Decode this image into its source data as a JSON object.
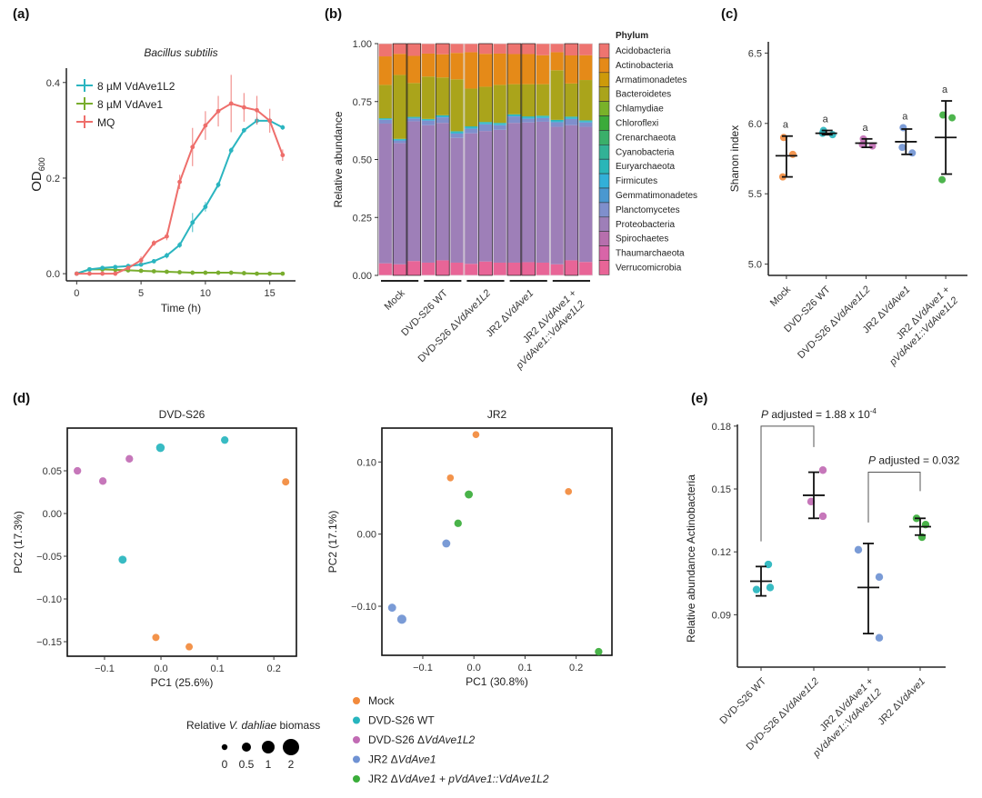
{
  "panels": {
    "a": "(a)",
    "b": "(b)",
    "c": "(c)",
    "d": "(d)",
    "e": "(e)"
  },
  "chart_data": [
    {
      "id": "a",
      "type": "line",
      "title": "Bacillus subtilis",
      "xlabel": "Time (h)",
      "ylabel": "OD",
      "ylabel_sub": "600",
      "xlim": [
        -0.8,
        17
      ],
      "ylim": [
        -0.015,
        0.43
      ],
      "xticks": [
        0,
        5,
        10,
        15
      ],
      "yticks": [
        0.0,
        0.2,
        0.4
      ],
      "ytick_labels": [
        "0.0",
        "0.2",
        "0.4"
      ],
      "legend_position": "top-left",
      "x": [
        0,
        1,
        2,
        3,
        4,
        5,
        6,
        7,
        8,
        9,
        10,
        11,
        12,
        13,
        14,
        15,
        16
      ],
      "series": [
        {
          "name": "8 µM VdAve1L2",
          "color": "#2bb5c0",
          "values": [
            0.0,
            0.009,
            0.012,
            0.014,
            0.016,
            0.019,
            0.026,
            0.038,
            0.06,
            0.107,
            0.14,
            0.186,
            0.258,
            0.3,
            0.32,
            0.32,
            0.306
          ],
          "errors": [
            0.002,
            0.002,
            0.002,
            0.002,
            0.003,
            0.003,
            0.004,
            0.006,
            0.006,
            0.02,
            0.01,
            0.006,
            0.006,
            0.005,
            0.008,
            0.006,
            0.005
          ]
        },
        {
          "name": "8 µM VdAve1",
          "color": "#79ad2e",
          "values": [
            0.0,
            0.009,
            0.009,
            0.008,
            0.007,
            0.006,
            0.005,
            0.004,
            0.003,
            0.002,
            0.002,
            0.002,
            0.002,
            0.001,
            0.0,
            0.0,
            0.0
          ],
          "errors": [
            0.002,
            0.002,
            0.002,
            0.002,
            0.002,
            0.002,
            0.002,
            0.002,
            0.002,
            0.002,
            0.002,
            0.002,
            0.002,
            0.002,
            0.002,
            0.002,
            0.002
          ]
        },
        {
          "name": "MQ",
          "color": "#ee6e6b",
          "values": [
            0.0,
            0.0,
            0.0,
            0.0,
            0.012,
            0.028,
            0.064,
            0.078,
            0.192,
            0.265,
            0.31,
            0.34,
            0.356,
            0.348,
            0.342,
            0.32,
            0.248
          ],
          "errors": [
            0.002,
            0.002,
            0.002,
            0.002,
            0.004,
            0.008,
            0.006,
            0.008,
            0.015,
            0.04,
            0.03,
            0.032,
            0.06,
            0.03,
            0.03,
            0.025,
            0.012
          ]
        }
      ]
    },
    {
      "id": "b",
      "type": "bar",
      "stacked": true,
      "xlabel": "",
      "ylabel": "Relative abundance",
      "ylim": [
        0,
        1
      ],
      "yticks": [
        0.0,
        0.25,
        0.5,
        0.75,
        1.0
      ],
      "ytick_labels": [
        "0.00",
        "0.25",
        "0.50",
        "0.75",
        "1.00"
      ],
      "group_labels": [
        "Mock",
        "DVD-S26 WT",
        "DVD-S26 ΔVdAve1L2",
        "JR2 ΔVdAve1",
        "JR2 ΔVdAve1 +|pVdAve1::VdAve1L2"
      ],
      "bars_per_group": 3,
      "legend_title": "Phylum",
      "legend_position": "right",
      "phyla": [
        "Acidobacteria",
        "Actinobacteria",
        "Armatimonadetes",
        "Bacteroidetes",
        "Chlamydiae",
        "Chloroflexi",
        "Crenarchaeota",
        "Cyanobacteria",
        "Euryarchaeota",
        "Firmicutes",
        "Gemmatimonadetes",
        "Planctomycetes",
        "Proteobacteria",
        "Spirochaetes",
        "Thaumarchaeota",
        "Verrucomicrobia"
      ],
      "colors": [
        "#ee7470",
        "#e58a18",
        "#cd9a0a",
        "#aaa41b",
        "#79b229",
        "#3bab3a",
        "#3aaf6a",
        "#32b296",
        "#2ab6b8",
        "#32b0d8",
        "#4a98d0",
        "#7f8fcc",
        "#9e7fb8",
        "#b66fad",
        "#d865a8",
        "#e86597"
      ],
      "samples": [
        {
          "Verrucomicrobia": 0.052,
          "Proteobacteria": 0.603,
          "Planctomycetes": 0.016,
          "Firmicutes": 0.003,
          "Euryarchaeota": 0.004,
          "Bacteroidetes": 0.144,
          "Actinobacteria": 0.123,
          "Acidobacteria": 0.055
        },
        {
          "Verrucomicrobia": 0.048,
          "Proteobacteria": 0.523,
          "Planctomycetes": 0.011,
          "Firmicutes": 0.003,
          "Euryarchaeota": 0.004,
          "Bacteroidetes": 0.276,
          "Actinobacteria": 0.091,
          "Acidobacteria": 0.044
        },
        {
          "Verrucomicrobia": 0.062,
          "Proteobacteria": 0.603,
          "Planctomycetes": 0.012,
          "Firmicutes": 0.003,
          "Euryarchaeota": 0.004,
          "Bacteroidetes": 0.146,
          "Actinobacteria": 0.117,
          "Acidobacteria": 0.053
        },
        {
          "Verrucomicrobia": 0.055,
          "Proteobacteria": 0.593,
          "Planctomycetes": 0.02,
          "Firmicutes": 0.003,
          "Euryarchaeota": 0.004,
          "Bacteroidetes": 0.183,
          "Actinobacteria": 0.099,
          "Acidobacteria": 0.043
        },
        {
          "Verrucomicrobia": 0.065,
          "Proteobacteria": 0.593,
          "Planctomycetes": 0.024,
          "Firmicutes": 0.004,
          "Euryarchaeota": 0.005,
          "Bacteroidetes": 0.163,
          "Actinobacteria": 0.1,
          "Acidobacteria": 0.046
        },
        {
          "Verrucomicrobia": 0.055,
          "Proteobacteria": 0.538,
          "Planctomycetes": 0.019,
          "Firmicutes": 0.004,
          "Euryarchaeota": 0.006,
          "Bacteroidetes": 0.224,
          "Actinobacteria": 0.114,
          "Acidobacteria": 0.04
        },
        {
          "Verrucomicrobia": 0.05,
          "Proteobacteria": 0.563,
          "Planctomycetes": 0.02,
          "Firmicutes": 0.004,
          "Euryarchaeota": 0.006,
          "Bacteroidetes": 0.163,
          "Actinobacteria": 0.157,
          "Acidobacteria": 0.037
        },
        {
          "Verrucomicrobia": 0.06,
          "Proteobacteria": 0.563,
          "Planctomycetes": 0.029,
          "Firmicutes": 0.004,
          "Euryarchaeota": 0.006,
          "Bacteroidetes": 0.152,
          "Actinobacteria": 0.142,
          "Acidobacteria": 0.044
        },
        {
          "Verrucomicrobia": 0.055,
          "Proteobacteria": 0.573,
          "Planctomycetes": 0.02,
          "Firmicutes": 0.004,
          "Euryarchaeota": 0.006,
          "Bacteroidetes": 0.164,
          "Actinobacteria": 0.135,
          "Acidobacteria": 0.043
        },
        {
          "Verrucomicrobia": 0.055,
          "Proteobacteria": 0.603,
          "Planctomycetes": 0.028,
          "Firmicutes": 0.004,
          "Euryarchaeota": 0.005,
          "Bacteroidetes": 0.13,
          "Actinobacteria": 0.13,
          "Acidobacteria": 0.045
        },
        {
          "Verrucomicrobia": 0.057,
          "Proteobacteria": 0.603,
          "Planctomycetes": 0.016,
          "Firmicutes": 0.004,
          "Euryarchaeota": 0.006,
          "Bacteroidetes": 0.139,
          "Actinobacteria": 0.13,
          "Acidobacteria": 0.045
        },
        {
          "Verrucomicrobia": 0.055,
          "Proteobacteria": 0.608,
          "Planctomycetes": 0.016,
          "Firmicutes": 0.004,
          "Euryarchaeota": 0.006,
          "Bacteroidetes": 0.136,
          "Actinobacteria": 0.125,
          "Acidobacteria": 0.05
        },
        {
          "Verrucomicrobia": 0.048,
          "Proteobacteria": 0.593,
          "Planctomycetes": 0.02,
          "Firmicutes": 0.004,
          "Euryarchaeota": 0.006,
          "Bacteroidetes": 0.214,
          "Actinobacteria": 0.078,
          "Acidobacteria": 0.037
        },
        {
          "Verrucomicrobia": 0.065,
          "Proteobacteria": 0.583,
          "Planctomycetes": 0.027,
          "Firmicutes": 0.004,
          "Euryarchaeota": 0.006,
          "Bacteroidetes": 0.143,
          "Actinobacteria": 0.121,
          "Acidobacteria": 0.051
        },
        {
          "Verrucomicrobia": 0.058,
          "Proteobacteria": 0.583,
          "Planctomycetes": 0.019,
          "Firmicutes": 0.004,
          "Euryarchaeota": 0.005,
          "Bacteroidetes": 0.174,
          "Actinobacteria": 0.107,
          "Acidobacteria": 0.05
        }
      ]
    },
    {
      "id": "c",
      "type": "scatter",
      "xlabel": "",
      "ylabel": "Shanon index",
      "ylim": [
        4.92,
        6.58
      ],
      "yticks": [
        5.0,
        5.5,
        6.0,
        6.5
      ],
      "ytick_labels": [
        "5.0",
        "5.5",
        "6.0",
        "6.5"
      ],
      "categories": [
        "Mock",
        "DVD-S26 WT",
        "DVD-S26 ΔVdAve1L2",
        "JR2 ΔVdAve1",
        "JR2 ΔVdAve1 +|pVdAve1::VdAve1L2"
      ],
      "colors": [
        "#f28a3c",
        "#27b5be",
        "#c16bb4",
        "#6f92d3",
        "#3aad3a"
      ],
      "points": [
        [
          5.9,
          5.78,
          5.62
        ],
        [
          5.95,
          5.92,
          5.93
        ],
        [
          5.89,
          5.84,
          5.85
        ],
        [
          5.97,
          5.79,
          5.83
        ],
        [
          6.06,
          6.04,
          5.6
        ]
      ],
      "means": [
        5.77,
        5.93,
        5.86,
        5.87,
        5.9
      ],
      "err_low": [
        5.62,
        5.92,
        5.83,
        5.78,
        5.64
      ],
      "err_high": [
        5.91,
        5.95,
        5.89,
        5.96,
        6.16
      ],
      "significance": [
        "a",
        "a",
        "a",
        "a",
        "a"
      ]
    },
    {
      "id": "d1",
      "type": "scatter",
      "title": "DVD-S26",
      "xlabel": "PC1   (25.6%)",
      "ylabel": "PC2   (17.3%)",
      "xlim": [
        -0.166,
        0.24
      ],
      "ylim": [
        -0.167,
        0.1
      ],
      "xticks": [
        -0.1,
        0.0,
        0.1,
        0.2
      ],
      "xtick_labels": [
        "−0.1",
        "0.0",
        "0.1",
        "0.2"
      ],
      "yticks": [
        -0.15,
        -0.1,
        -0.05,
        0.0,
        0.05
      ],
      "ytick_labels": [
        "−0.15",
        "−0.10",
        "−0.05",
        "0.00",
        "0.05"
      ],
      "points": [
        {
          "group": "DVD-S26 ΔVdAve1L2",
          "x": -0.148,
          "y": 0.05,
          "size": 0.6
        },
        {
          "group": "DVD-S26 ΔVdAve1L2",
          "x": -0.103,
          "y": 0.038,
          "size": 0.6
        },
        {
          "group": "DVD-S26 ΔVdAve1L2",
          "x": -0.056,
          "y": 0.064,
          "size": 0.6
        },
        {
          "group": "DVD-S26 WT",
          "x": -0.001,
          "y": 0.077,
          "size": 1.0
        },
        {
          "group": "DVD-S26 WT",
          "x": 0.113,
          "y": 0.086,
          "size": 0.6
        },
        {
          "group": "DVD-S26 WT",
          "x": -0.068,
          "y": -0.054,
          "size": 0.8
        },
        {
          "group": "Mock",
          "x": 0.221,
          "y": 0.037,
          "size": 0.5
        },
        {
          "group": "Mock",
          "x": -0.009,
          "y": -0.145,
          "size": 0.5
        },
        {
          "group": "Mock",
          "x": 0.05,
          "y": -0.156,
          "size": 0.5
        }
      ]
    },
    {
      "id": "d2",
      "type": "scatter",
      "title": "JR2",
      "xlabel": "PC1   (30.8%)",
      "ylabel": "PC2   (17.1%)",
      "xlim": [
        -0.18,
        0.27
      ],
      "ylim": [
        -0.168,
        0.147
      ],
      "xticks": [
        -0.1,
        0.0,
        0.1,
        0.2
      ],
      "xtick_labels": [
        "−0.1",
        "0.0",
        "0.1",
        "0.2"
      ],
      "yticks": [
        -0.1,
        0.0,
        0.1
      ],
      "ytick_labels": [
        "−0.10",
        "0.00",
        "0.10"
      ],
      "points": [
        {
          "group": "Mock",
          "x": 0.004,
          "y": 0.138,
          "size": 0.4
        },
        {
          "group": "Mock",
          "x": -0.046,
          "y": 0.078,
          "size": 0.4
        },
        {
          "group": "Mock",
          "x": 0.185,
          "y": 0.059,
          "size": 0.4
        },
        {
          "group": "JR2 ΔVdAve1 + pVdAve1::VdAve1L2",
          "x": -0.01,
          "y": 0.055,
          "size": 0.8
        },
        {
          "group": "JR2 ΔVdAve1 + pVdAve1::VdAve1L2",
          "x": -0.031,
          "y": 0.015,
          "size": 0.6
        },
        {
          "group": "JR2 ΔVdAve1 + pVdAve1::VdAve1L2",
          "x": 0.244,
          "y": -0.163,
          "size": 0.6
        },
        {
          "group": "JR2 ΔVdAve1",
          "x": -0.054,
          "y": -0.013,
          "size": 0.8
        },
        {
          "group": "JR2 ΔVdAve1",
          "x": -0.16,
          "y": -0.102,
          "size": 0.8
        },
        {
          "group": "JR2 ΔVdAve1",
          "x": -0.141,
          "y": -0.118,
          "size": 1.3
        }
      ]
    },
    {
      "id": "e",
      "type": "scatter",
      "xlabel": "",
      "ylabel": "Relative abundance Actinobacteria",
      "ylim": [
        0.065,
        0.186
      ],
      "yticks": [
        0.09,
        0.12,
        0.15,
        0.18
      ],
      "ytick_labels": [
        "0.09",
        "0.12",
        "0.15",
        "0.18"
      ],
      "categories": [
        "DVD-S26 WT",
        "DVD-S26 ΔVdAve1L2",
        "JR2 ΔVdAve1 +|pVdAve1::VdAve1L2",
        "JR2 ΔVdAve1"
      ],
      "colors": [
        "#27b5be",
        "#c16bb4",
        "#6f92d3",
        "#3aad3a"
      ],
      "points": [
        [
          0.102,
          0.103,
          0.114
        ],
        [
          0.144,
          0.137,
          0.159
        ],
        [
          0.121,
          0.108,
          0.079
        ],
        [
          0.136,
          0.133,
          0.127
        ]
      ],
      "means": [
        0.106,
        0.147,
        0.103,
        0.132
      ],
      "err_low": [
        0.099,
        0.136,
        0.081,
        0.128
      ],
      "err_high": [
        0.113,
        0.158,
        0.124,
        0.136
      ],
      "annotations": [
        {
          "label_p": "P",
          "label_rest": " adjusted = 1.88 x 10",
          "sup": "-4",
          "from": 0,
          "to": 1,
          "y": 0.18,
          "left_drop": 0.125,
          "right_drop": 0.17
        },
        {
          "label_p": "P",
          "label_rest": " adjusted = 0.032",
          "sup": "",
          "from": 2,
          "to": 3,
          "y": 0.158,
          "left_drop": 0.134,
          "right_drop": 0.149
        }
      ]
    }
  ],
  "group_legend": {
    "items": [
      {
        "label_plain": "Mock",
        "label_italic": "",
        "color": "#f28a3c"
      },
      {
        "label_plain": "DVD-S26 WT",
        "label_italic": "",
        "color": "#27b5be"
      },
      {
        "label_plain": "DVD-S26 Δ",
        "label_italic": "VdAve1L2",
        "color": "#c16bb4"
      },
      {
        "label_plain": "JR2 Δ",
        "label_italic": "VdAve1",
        "color": "#6f92d3"
      },
      {
        "label_plain": "JR2 Δ",
        "label_italic": "VdAve1 + pVdAve1::VdAve1L2",
        "color": "#3aad3a"
      }
    ]
  },
  "size_legend": {
    "title_pre": "Relative ",
    "title_italic": "V. dahliae",
    "title_post": " biomass",
    "values": [
      0,
      0.5,
      1,
      2
    ],
    "labels": [
      "0",
      "0.5",
      "1",
      "2"
    ]
  }
}
